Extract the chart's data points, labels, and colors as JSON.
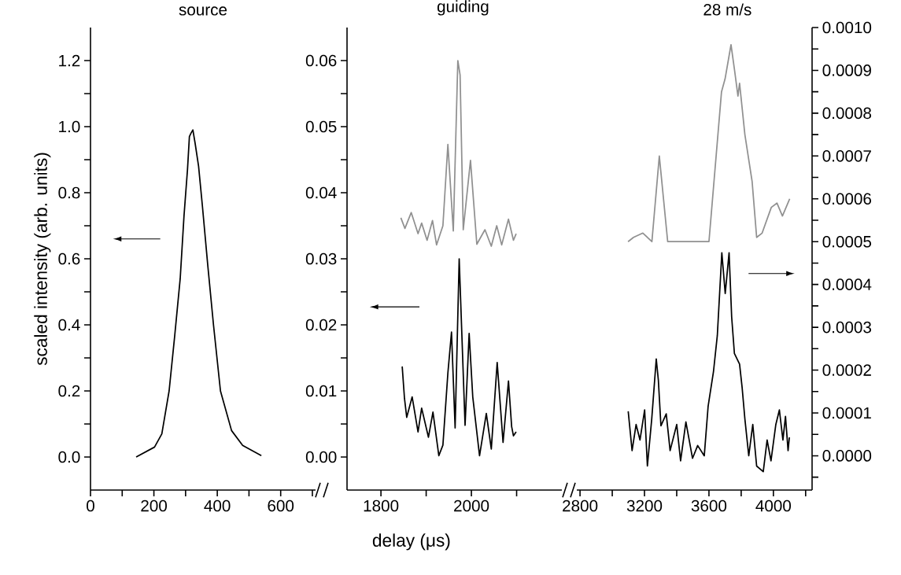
{
  "chart_data": [
    {
      "type": "line",
      "title": "source",
      "ylabel": "scaled intensity (arb. units)",
      "series": [
        {
          "color": "#000000",
          "x": [
            144,
            202,
            225,
            248,
            266,
            283,
            295,
            306,
            312,
            317,
            323,
            330,
            341,
            353,
            370,
            388,
            410,
            445,
            480,
            539
          ],
          "values": [
            0.0,
            0.03,
            0.07,
            0.2,
            0.37,
            0.54,
            0.73,
            0.87,
            0.97,
            0.98,
            0.99,
            0.95,
            0.88,
            0.76,
            0.58,
            0.4,
            0.2,
            0.08,
            0.035,
            0.004
          ]
        }
      ],
      "xlim": [
        0,
        710
      ],
      "ylim": [
        -0.1,
        1.3
      ],
      "xticks": [
        0,
        {
          "value": 100,
          "label": null
        },
        200,
        {
          "value": 300,
          "label": null
        },
        400,
        {
          "value": 500,
          "label": null
        },
        600,
        {
          "value": 700,
          "label": null
        }
      ],
      "yticks": [
        {
          "value": 0,
          "label": "0.0"
        },
        {
          "value": 0.1,
          "label": null
        },
        {
          "value": 0.2,
          "label": "0.2"
        },
        {
          "value": 0.3,
          "label": null
        },
        {
          "value": 0.4,
          "label": "0.4"
        },
        {
          "value": 0.5,
          "label": null
        },
        {
          "value": 0.6,
          "label": "0.6"
        },
        {
          "value": 0.7,
          "label": null
        },
        {
          "value": 0.8,
          "label": "0.8"
        },
        {
          "value": 0.9,
          "label": null
        },
        {
          "value": 1.0,
          "label": "1.0"
        },
        {
          "value": 1.1,
          "label": null
        },
        {
          "value": 1.2,
          "label": "1.2"
        }
      ]
    },
    {
      "type": "line",
      "title": "guiding",
      "xlabel": "delay (μs)",
      "series": [
        {
          "color": "#909090",
          "x": [
            1844,
            1853,
            1867,
            1882,
            1890,
            1902,
            1914,
            1923,
            1937,
            1948,
            1960,
            1970,
            1975,
            1982,
            1998,
            2012,
            2030,
            2044,
            2056,
            2067,
            2082,
            2093,
            2099
          ],
          "values": [
            0.0362,
            0.0346,
            0.037,
            0.0338,
            0.0354,
            0.0328,
            0.0358,
            0.0321,
            0.035,
            0.0473,
            0.0342,
            0.06,
            0.0578,
            0.0344,
            0.0449,
            0.0322,
            0.0344,
            0.0319,
            0.035,
            0.0321,
            0.036,
            0.0328,
            0.0338
          ]
        },
        {
          "color": "#000000",
          "x": [
            1847,
            1852,
            1857,
            1869,
            1882,
            1890,
            1905,
            1915,
            1928,
            1937,
            1948,
            1956,
            1964,
            1973,
            1986,
            1995,
            2003,
            2018,
            2033,
            2044,
            2057,
            2070,
            2082,
            2089,
            2093,
            2099
          ],
          "values": [
            0.0137,
            0.0089,
            0.006,
            0.0091,
            0.0038,
            0.0074,
            0.003,
            0.0068,
            0.0002,
            0.0018,
            0.0127,
            0.0189,
            0.0044,
            0.03,
            0.0048,
            0.0187,
            0.0091,
            0.0002,
            0.0066,
            0.0012,
            0.0143,
            0.0022,
            0.0115,
            0.0046,
            0.0032,
            0.0038
          ]
        }
      ],
      "xlim": [
        1725,
        2200
      ],
      "ylim": [
        -0.005,
        0.065
      ],
      "xticks": [
        1800,
        {
          "value": 1900,
          "label": null
        },
        2000,
        {
          "value": 2100,
          "label": null
        }
      ],
      "yticks": [
        {
          "value": 0,
          "label": "0.00"
        },
        {
          "value": 0.005,
          "label": null
        },
        {
          "value": 0.01,
          "label": "0.01"
        },
        {
          "value": 0.015,
          "label": null
        },
        {
          "value": 0.02,
          "label": "0.02"
        },
        {
          "value": 0.025,
          "label": null
        },
        {
          "value": 0.03,
          "label": "0.03"
        },
        {
          "value": 0.035,
          "label": null
        },
        {
          "value": 0.04,
          "label": "0.04"
        },
        {
          "value": 0.045,
          "label": null
        },
        {
          "value": 0.05,
          "label": "0.05"
        },
        {
          "value": 0.055,
          "label": null
        },
        {
          "value": 0.06,
          "label": "0.06"
        }
      ]
    },
    {
      "type": "line",
      "title": "28 m/s",
      "series": [
        {
          "color": "#909090",
          "axis": "y2",
          "x": [
            3098,
            3132,
            3190,
            3246,
            3292,
            3344,
            3600,
            3678,
            3700,
            3737,
            3759,
            3780,
            3790,
            3823,
            3868,
            3896,
            3930,
            3987,
            4022,
            4056,
            4101
          ],
          "values": [
            0.0005,
            0.00051,
            0.00052,
            0.0005,
            0.0007,
            0.0005,
            0.0005,
            0.00085,
            0.00088,
            0.00096,
            0.0009,
            0.00084,
            0.00087,
            0.00075,
            0.00064,
            0.00051,
            0.00052,
            0.00058,
            0.00059,
            0.00056,
            0.0006
          ]
        },
        {
          "color": "#000000",
          "axis": "y2",
          "x": [
            3099,
            3123,
            3148,
            3172,
            3201,
            3218,
            3245,
            3273,
            3286,
            3302,
            3335,
            3359,
            3400,
            3424,
            3457,
            3498,
            3530,
            3571,
            3595,
            3628,
            3652,
            3680,
            3701,
            3725,
            3741,
            3758,
            3790,
            3806,
            3823,
            3847,
            3872,
            3896,
            3937,
            3961,
            3985,
            4015,
            4037,
            4059,
            4075,
            4091,
            4099
          ],
          "values": [
            0.000104,
            1.2e-05,
            7.3e-05,
            3.7e-05,
            0.000107,
            -2.4e-05,
            8.6e-05,
            0.000226,
            0.000177,
            7e-05,
            9.8e-05,
            1.2e-05,
            7.3e-05,
            -1.2e-05,
            7.9e-05,
            -6e-06,
            2.4e-05,
            0.0,
            0.000116,
            0.000196,
            0.000281,
            0.000474,
            0.000379,
            0.000474,
            0.000324,
            0.000239,
            0.000214,
            0.000159,
            8.6e-05,
            0.0,
            7.3e-05,
            -2.4e-05,
            -3.7e-05,
            3.7e-05,
            -1.2e-05,
            7.3e-05,
            0.000107,
            3.7e-05,
            9.2e-05,
            1.2e-05,
            4.3e-05
          ]
        }
      ],
      "xlim": [
        2780,
        4240
      ],
      "y2lim": [
        -8e-05,
        0.001
      ],
      "xticks": [
        2800,
        {
          "value": 3000,
          "label": null
        },
        3200,
        {
          "value": 3400,
          "label": null
        },
        3600,
        {
          "value": 3800,
          "label": null
        },
        4000,
        {
          "value": 4200,
          "label": null
        }
      ],
      "y2ticks": [
        {
          "value": -5e-05,
          "label": null
        },
        {
          "value": 0,
          "label": "0.0000"
        },
        {
          "value": 5e-05,
          "label": null
        },
        {
          "value": 0.0001,
          "label": "0.0001"
        },
        {
          "value": 0.00015,
          "label": null
        },
        {
          "value": 0.0002,
          "label": "0.0002"
        },
        {
          "value": 0.00025,
          "label": null
        },
        {
          "value": 0.0003,
          "label": "0.0003"
        },
        {
          "value": 0.00035,
          "label": null
        },
        {
          "value": 0.0004,
          "label": "0.0004"
        },
        {
          "value": 0.00045,
          "label": null
        },
        {
          "value": 0.0005,
          "label": "0.0005"
        },
        {
          "value": 0.00055,
          "label": null
        },
        {
          "value": 0.0006,
          "label": "0.0006"
        },
        {
          "value": 0.00065,
          "label": null
        },
        {
          "value": 0.0007,
          "label": "0.0007"
        },
        {
          "value": 0.00075,
          "label": null
        },
        {
          "value": 0.0008,
          "label": "0.0008"
        },
        {
          "value": 0.00085,
          "label": null
        },
        {
          "value": 0.0009,
          "label": "0.0009"
        },
        {
          "value": 0.00095,
          "label": null
        },
        {
          "value": 0.001,
          "label": "0.0010"
        }
      ]
    }
  ]
}
